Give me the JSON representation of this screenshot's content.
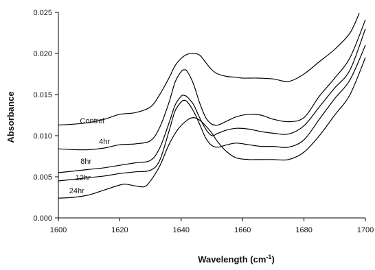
{
  "chart_data": {
    "type": "line",
    "xlabel": "Wavelength (cm",
    "xlabel_sup": "-1",
    "xlabel_close": ")",
    "ylabel": "Absorbance",
    "xlim": [
      1600,
      1700
    ],
    "ylim": [
      0,
      0.025
    ],
    "xticks": [
      "1600",
      "1620",
      "1640",
      "1660",
      "1680",
      "1700"
    ],
    "yticks": [
      "0.000",
      "0.005",
      "0.010",
      "0.015",
      "0.020",
      "0.025"
    ],
    "grid": false,
    "series": [
      {
        "name": "Control",
        "label_at": [
          1611,
          0.0115
        ],
        "x": [
          1600,
          1605,
          1610,
          1615,
          1620,
          1625,
          1630,
          1633,
          1636,
          1638,
          1640,
          1642,
          1644,
          1646,
          1648,
          1650,
          1652,
          1655,
          1658,
          1660,
          1665,
          1670,
          1675,
          1680,
          1685,
          1690,
          1695,
          1698
        ],
        "values": [
          0.0113,
          0.0114,
          0.0116,
          0.012,
          0.0126,
          0.0128,
          0.0135,
          0.015,
          0.017,
          0.0185,
          0.0194,
          0.0199,
          0.02,
          0.0198,
          0.0189,
          0.018,
          0.0175,
          0.0172,
          0.0171,
          0.017,
          0.017,
          0.0169,
          0.0166,
          0.0175,
          0.019,
          0.0205,
          0.0225,
          0.0249
        ]
      },
      {
        "name": "4hr",
        "label_at": [
          1615,
          0.009
        ],
        "x": [
          1600,
          1605,
          1610,
          1615,
          1620,
          1625,
          1630,
          1633,
          1636,
          1638,
          1640,
          1641,
          1642,
          1644,
          1646,
          1648,
          1650,
          1652,
          1655,
          1658,
          1662,
          1666,
          1670,
          1675,
          1680,
          1685,
          1690,
          1695,
          1700
        ],
        "values": [
          0.0084,
          0.0083,
          0.0083,
          0.0085,
          0.0089,
          0.009,
          0.0094,
          0.011,
          0.014,
          0.0165,
          0.0178,
          0.018,
          0.0178,
          0.0163,
          0.014,
          0.0122,
          0.0114,
          0.0113,
          0.0118,
          0.0123,
          0.0126,
          0.0125,
          0.012,
          0.0117,
          0.0122,
          0.0148,
          0.017,
          0.0195,
          0.0241
        ]
      },
      {
        "name": "8hr",
        "label_at": [
          1609,
          0.0066
        ],
        "x": [
          1600,
          1605,
          1610,
          1615,
          1620,
          1625,
          1630,
          1633,
          1636,
          1638,
          1640,
          1641,
          1642,
          1644,
          1646,
          1648,
          1650,
          1652,
          1655,
          1658,
          1662,
          1666,
          1670,
          1675,
          1680,
          1685,
          1690,
          1695,
          1700
        ],
        "values": [
          0.0055,
          0.0057,
          0.0059,
          0.0061,
          0.0064,
          0.0067,
          0.007,
          0.0085,
          0.0115,
          0.0137,
          0.0148,
          0.0149,
          0.0147,
          0.0138,
          0.0122,
          0.0108,
          0.01,
          0.0103,
          0.0107,
          0.0109,
          0.0108,
          0.0105,
          0.0103,
          0.0102,
          0.0112,
          0.0135,
          0.0158,
          0.018,
          0.023
        ]
      },
      {
        "name": "12hr",
        "label_at": [
          1608,
          0.0046
        ],
        "x": [
          1600,
          1605,
          1610,
          1615,
          1620,
          1625,
          1630,
          1633,
          1636,
          1638,
          1640,
          1641,
          1642,
          1644,
          1646,
          1648,
          1650,
          1652,
          1655,
          1658,
          1662,
          1666,
          1670,
          1675,
          1680,
          1685,
          1690,
          1695,
          1700
        ],
        "values": [
          0.0045,
          0.0047,
          0.0049,
          0.0051,
          0.0054,
          0.0056,
          0.0058,
          0.007,
          0.0105,
          0.013,
          0.0141,
          0.0143,
          0.0141,
          0.013,
          0.0114,
          0.0097,
          0.0088,
          0.0086,
          0.0089,
          0.0091,
          0.0089,
          0.0087,
          0.0087,
          0.0086,
          0.0095,
          0.012,
          0.0145,
          0.0168,
          0.021
        ]
      },
      {
        "name": "24hr",
        "label_at": [
          1606,
          0.003
        ],
        "x": [
          1600,
          1605,
          1610,
          1615,
          1620,
          1622,
          1625,
          1628,
          1630,
          1633,
          1636,
          1639,
          1642,
          1644,
          1646,
          1648,
          1650,
          1652,
          1655,
          1658,
          1662,
          1666,
          1670,
          1675,
          1680,
          1685,
          1690,
          1695,
          1700
        ],
        "values": [
          0.0024,
          0.0025,
          0.0028,
          0.0034,
          0.004,
          0.0041,
          0.0039,
          0.0038,
          0.0045,
          0.0063,
          0.0089,
          0.0108,
          0.0119,
          0.0122,
          0.0119,
          0.0112,
          0.0103,
          0.0092,
          0.008,
          0.0073,
          0.0071,
          0.0071,
          0.0071,
          0.0071,
          0.008,
          0.01,
          0.0125,
          0.015,
          0.0195
        ]
      }
    ]
  }
}
